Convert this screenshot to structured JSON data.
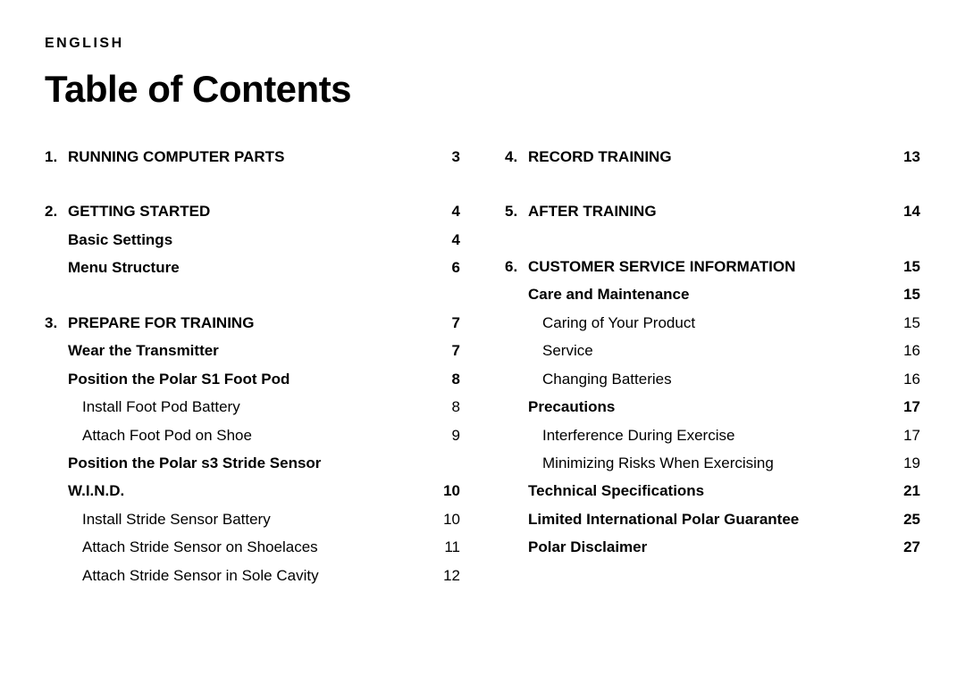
{
  "header": {
    "language": "ENGLISH",
    "title": "Table of Contents"
  },
  "columns": [
    {
      "sections": [
        {
          "entries": [
            {
              "level": 1,
              "num": "1.",
              "label": "RUNNING COMPUTER PARTS",
              "page": "3"
            }
          ]
        },
        {
          "entries": [
            {
              "level": 1,
              "num": "2.",
              "label": "GETTING STARTED",
              "page": "4"
            },
            {
              "level": 2,
              "label": "Basic Settings",
              "page": "4"
            },
            {
              "level": 2,
              "label": "Menu Structure",
              "page": "6"
            }
          ]
        },
        {
          "entries": [
            {
              "level": 1,
              "num": "3.",
              "label": "PREPARE FOR TRAINING",
              "page": "7"
            },
            {
              "level": 2,
              "label": "Wear the Transmitter",
              "page": "7"
            },
            {
              "level": 2,
              "label": "Position the Polar S1 Foot Pod",
              "page": "8"
            },
            {
              "level": 3,
              "indent": 2,
              "label": "Install Foot Pod Battery",
              "page": "8"
            },
            {
              "level": 3,
              "indent": 2,
              "label": "Attach Foot Pod on Shoe",
              "page": "9"
            },
            {
              "level": 2,
              "label": "Position the Polar s3 Stride Sensor",
              "wrap": true
            },
            {
              "level": 2,
              "label": "W.I.N.D.",
              "page": "10"
            },
            {
              "level": 3,
              "indent": 2,
              "label": "Install Stride Sensor Battery",
              "page": "10"
            },
            {
              "level": 3,
              "indent": 2,
              "label": "Attach Stride Sensor on Shoelaces",
              "page": "11"
            },
            {
              "level": 3,
              "indent": 2,
              "label": "Attach Stride Sensor in Sole Cavity",
              "page": "12"
            }
          ]
        }
      ]
    },
    {
      "sections": [
        {
          "entries": [
            {
              "level": 1,
              "num": "4.",
              "label": "RECORD TRAINING",
              "page": "13"
            }
          ]
        },
        {
          "entries": [
            {
              "level": 1,
              "num": "5.",
              "label": "AFTER TRAINING",
              "page": "14"
            }
          ]
        },
        {
          "entries": [
            {
              "level": 1,
              "num": "6.",
              "label": "CUSTOMER SERVICE INFORMATION",
              "page": "15"
            },
            {
              "level": 2,
              "label": "Care and Maintenance",
              "page": "15"
            },
            {
              "level": 3,
              "indent": 2,
              "label": "Caring of Your Product",
              "page": "15"
            },
            {
              "level": 3,
              "indent": 2,
              "label": "Service",
              "page": "16"
            },
            {
              "level": 3,
              "indent": 2,
              "label": "Changing Batteries",
              "page": "16"
            },
            {
              "level": 2,
              "label": "Precautions",
              "page": "17"
            },
            {
              "level": 3,
              "indent": 2,
              "label": "Interference During Exercise",
              "page": "17"
            },
            {
              "level": 3,
              "indent": 2,
              "label": "Minimizing Risks When Exercising",
              "page": "19"
            },
            {
              "level": 2,
              "label": "Technical Specifications",
              "page": "21"
            },
            {
              "level": 2,
              "label": "Limited International Polar Guarantee",
              "page": "25"
            },
            {
              "level": 2,
              "label": "Polar Disclaimer",
              "page": "27"
            }
          ]
        }
      ]
    }
  ]
}
